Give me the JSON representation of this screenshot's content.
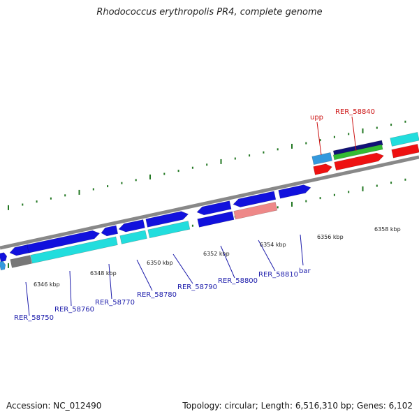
{
  "title": "Rhodococcus erythropolis PR4, complete genome",
  "footer": {
    "accession": "Accession: NC_012490",
    "topology": "Topology: circular; Length: 6,516,310 bp; Genes: 6,102"
  },
  "colors": {
    "backbone": "#888888",
    "tick": "#227722",
    "label_blue": "#1a1aaa",
    "label_red": "#cc1111",
    "gene_blue": "#1111dd",
    "gene_cyan": "#22dddd",
    "gene_navy": "#111177",
    "gene_green": "#33bb33",
    "gene_red": "#ee1111",
    "gene_salmon": "#ee8888",
    "gene_gray": "#777777",
    "gene_lightblue": "#3399dd"
  },
  "scale_labels": [
    "6346 kbp",
    "6348 kbp",
    "6350 kbp",
    "6352 kbp",
    "6354 kbp",
    "6356 kbp",
    "6358 kbp"
  ],
  "gene_labels_blue": [
    "RER_58750",
    "RER_58760",
    "RER_58770",
    "RER_58780",
    "RER_58790",
    "RER_58800",
    "RER_58810",
    "bar"
  ],
  "gene_labels_red": [
    "upp",
    "RER_58840"
  ]
}
